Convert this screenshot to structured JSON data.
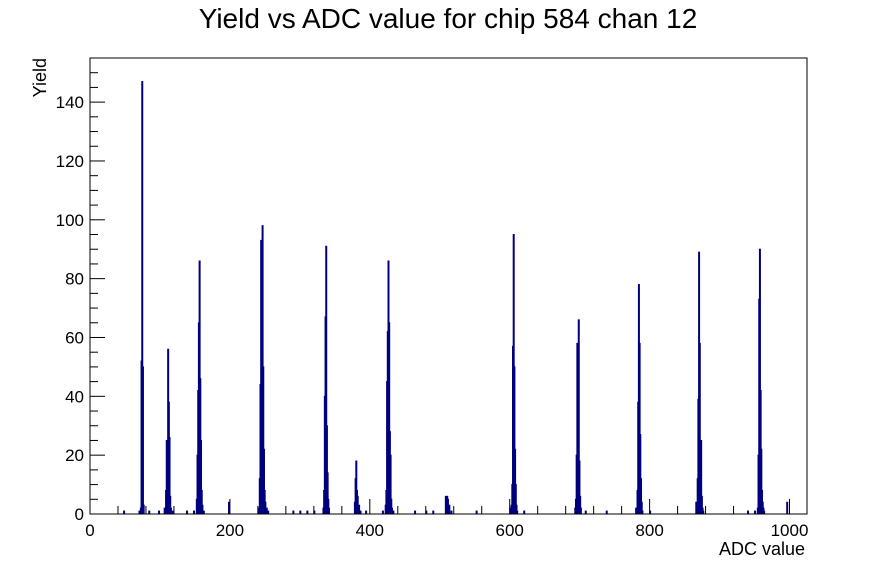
{
  "chart_data": {
    "type": "bar",
    "title": "Yield vs ADC value for chip 584 chan 12",
    "xlabel": "ADC value",
    "ylabel": "Yield",
    "xlim": [
      0,
      1025
    ],
    "ylim": [
      0,
      155
    ],
    "x_ticks": [
      0,
      200,
      400,
      600,
      800,
      1000
    ],
    "y_ticks": [
      0,
      20,
      40,
      60,
      80,
      100,
      120,
      140
    ],
    "series": [
      {
        "color": "#00007f",
        "points": [
          [
            48,
            1
          ],
          [
            70,
            1
          ],
          [
            72,
            2
          ],
          [
            73,
            52
          ],
          [
            74,
            147
          ],
          [
            75,
            50
          ],
          [
            76,
            3
          ],
          [
            84,
            1
          ],
          [
            98,
            1
          ],
          [
            106,
            2
          ],
          [
            108,
            8
          ],
          [
            109,
            25
          ],
          [
            110,
            22
          ],
          [
            111,
            56
          ],
          [
            112,
            38
          ],
          [
            113,
            26
          ],
          [
            114,
            6
          ],
          [
            115,
            2
          ],
          [
            118,
            1
          ],
          [
            138,
            1
          ],
          [
            148,
            1
          ],
          [
            152,
            5
          ],
          [
            153,
            20
          ],
          [
            154,
            42
          ],
          [
            155,
            65
          ],
          [
            156,
            86
          ],
          [
            157,
            46
          ],
          [
            158,
            25
          ],
          [
            159,
            8
          ],
          [
            160,
            3
          ],
          [
            162,
            1
          ],
          [
            198,
            4
          ],
          [
            240,
            2
          ],
          [
            242,
            12
          ],
          [
            243,
            44
          ],
          [
            244,
            93
          ],
          [
            245,
            75
          ],
          [
            246,
            98
          ],
          [
            247,
            50
          ],
          [
            248,
            22
          ],
          [
            249,
            8
          ],
          [
            250,
            4
          ],
          [
            252,
            2
          ],
          [
            254,
            1
          ],
          [
            290,
            1
          ],
          [
            300,
            1
          ],
          [
            310,
            1
          ],
          [
            320,
            1
          ],
          [
            333,
            2
          ],
          [
            334,
            8
          ],
          [
            335,
            40
          ],
          [
            336,
            67
          ],
          [
            337,
            91
          ],
          [
            338,
            30
          ],
          [
            339,
            14
          ],
          [
            340,
            5
          ],
          [
            341,
            2
          ],
          [
            378,
            4
          ],
          [
            379,
            12
          ],
          [
            380,
            18
          ],
          [
            381,
            8
          ],
          [
            382,
            6
          ],
          [
            384,
            3
          ],
          [
            386,
            1
          ],
          [
            394,
            1
          ],
          [
            418,
            1
          ],
          [
            422,
            3
          ],
          [
            423,
            8
          ],
          [
            424,
            45
          ],
          [
            425,
            62
          ],
          [
            426,
            86
          ],
          [
            427,
            65
          ],
          [
            428,
            28
          ],
          [
            429,
            20
          ],
          [
            430,
            5
          ],
          [
            431,
            2
          ],
          [
            433,
            1
          ],
          [
            464,
            1
          ],
          [
            480,
            1
          ],
          [
            490,
            1
          ],
          [
            508,
            6
          ],
          [
            509,
            4
          ],
          [
            510,
            6
          ],
          [
            511,
            5
          ],
          [
            512,
            2
          ],
          [
            513,
            3
          ],
          [
            516,
            1
          ],
          [
            552,
            1
          ],
          [
            600,
            2
          ],
          [
            602,
            3
          ],
          [
            603,
            10
          ],
          [
            604,
            57
          ],
          [
            605,
            95
          ],
          [
            606,
            50
          ],
          [
            607,
            22
          ],
          [
            608,
            10
          ],
          [
            609,
            3
          ],
          [
            610,
            1
          ],
          [
            620,
            1
          ],
          [
            693,
            2
          ],
          [
            694,
            5
          ],
          [
            695,
            20
          ],
          [
            696,
            58
          ],
          [
            697,
            40
          ],
          [
            698,
            66
          ],
          [
            699,
            18
          ],
          [
            700,
            6
          ],
          [
            701,
            2
          ],
          [
            708,
            1
          ],
          [
            738,
            1
          ],
          [
            780,
            2
          ],
          [
            782,
            8
          ],
          [
            783,
            38
          ],
          [
            784,
            78
          ],
          [
            785,
            58
          ],
          [
            786,
            27
          ],
          [
            787,
            12
          ],
          [
            788,
            4
          ],
          [
            789,
            1
          ],
          [
            800,
            1
          ],
          [
            866,
            4
          ],
          [
            868,
            12
          ],
          [
            869,
            39
          ],
          [
            870,
            89
          ],
          [
            871,
            58
          ],
          [
            872,
            17
          ],
          [
            873,
            25
          ],
          [
            874,
            6
          ],
          [
            875,
            2
          ],
          [
            876,
            1
          ],
          [
            940,
            1
          ],
          [
            950,
            1
          ],
          [
            954,
            2
          ],
          [
            955,
            20
          ],
          [
            956,
            73
          ],
          [
            957,
            90
          ],
          [
            958,
            42
          ],
          [
            959,
            22
          ],
          [
            960,
            8
          ],
          [
            961,
            4
          ],
          [
            962,
            2
          ],
          [
            963,
            1
          ],
          [
            996,
            4
          ]
        ]
      }
    ]
  }
}
